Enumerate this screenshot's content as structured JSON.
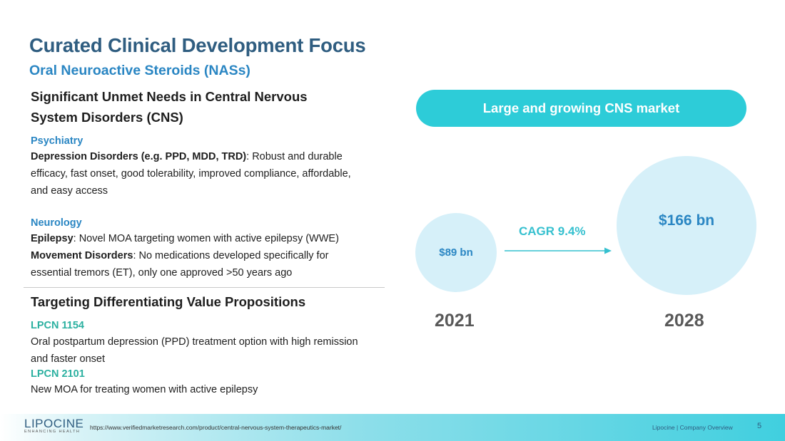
{
  "slide": {
    "title": "Curated Clinical Development Focus",
    "subtitle": "Oral Neuroactive Steroids (NASs)"
  },
  "left": {
    "section1_heading_line1": "Significant Unmet Needs in Central Nervous",
    "section1_heading_line2": "System Disorders (CNS)",
    "psychiatry": {
      "label": "Psychiatry",
      "item_term": "Depression Disorders (e.g. PPD, MDD, TRD)",
      "item_line1": ": Robust and durable",
      "item_line2": "efficacy, fast onset, good tolerability, improved compliance, affordable,",
      "item_line3": "and easy access"
    },
    "neurology": {
      "label": "Neurology",
      "epilepsy_term": "Epilepsy",
      "epilepsy_text": ": Novel MOA targeting women with active epilepsy (WWE)",
      "movement_term": "Movement Disorders",
      "movement_line1": ": No medications developed specifically for",
      "movement_line2": "essential tremors (ET), only one approved >50 years ago"
    },
    "section2_heading": "Targeting Differentiating Value Propositions",
    "products": [
      {
        "name": "LPCN 1154",
        "line1": "Oral postpartum depression (PPD) treatment option with high remission",
        "line2": "and faster onset"
      },
      {
        "name": "LPCN 2101",
        "line1": "New MOA for treating women with active epilepsy"
      }
    ]
  },
  "right": {
    "banner": "Large and growing CNS market",
    "cagr": "CAGR 9.4%",
    "markets": [
      {
        "year": "2021",
        "value_label": "$89 bn",
        "value_bn": 89
      },
      {
        "year": "2028",
        "value_label": "$166 bn",
        "value_bn": 166
      }
    ]
  },
  "footer": {
    "logo_text": "LIPOCINE",
    "logo_tagline": "ENHANCING HEALTH",
    "source_url": "https://www.verifiedmarketresearch.com/product/central-nervous-system-therapeutics-market/",
    "company_label": "Lipocine  |  Company Overview",
    "page_number": "5"
  },
  "colors": {
    "title": "#2f5d80",
    "accent_blue": "#2a86c3",
    "accent_green": "#2bb0a0",
    "teal": "#2dccd8",
    "bubble": "#d6f0f9"
  }
}
